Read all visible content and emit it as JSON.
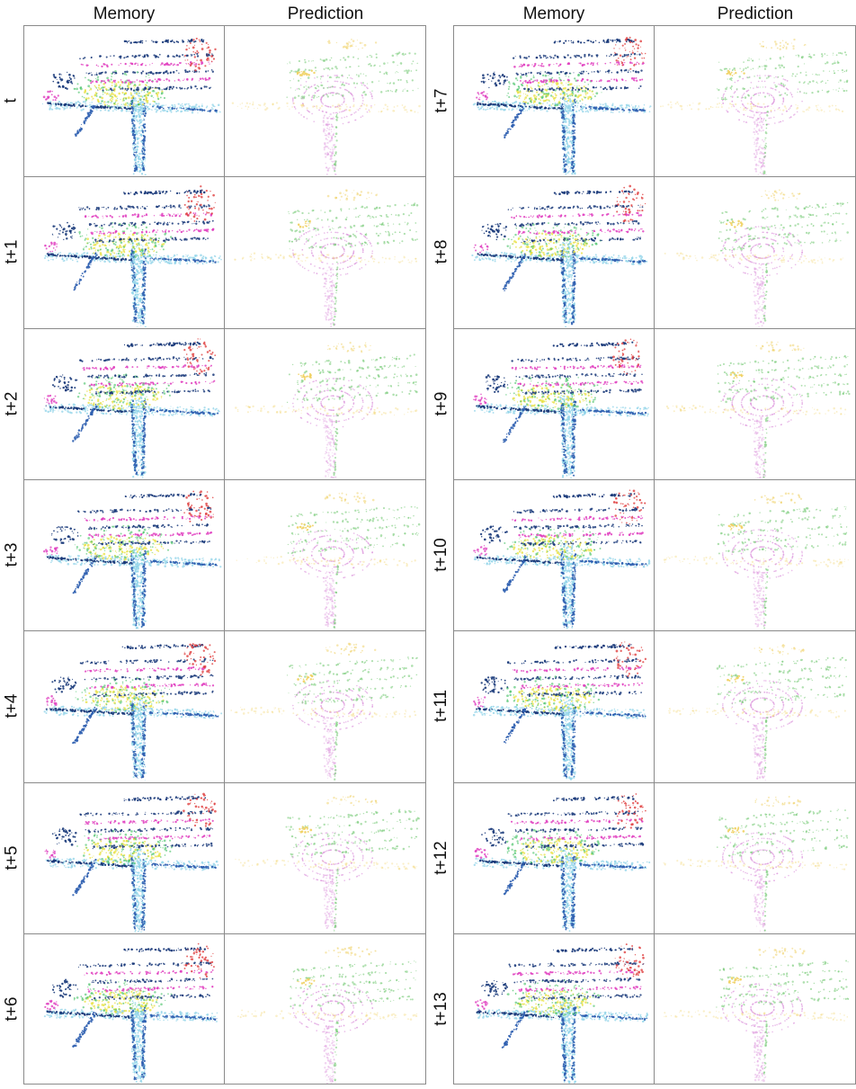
{
  "headers": {
    "left_memory": "Memory",
    "left_prediction": "Prediction",
    "right_memory": "Memory",
    "right_prediction": "Prediction"
  },
  "left_rows": [
    "t",
    "t+1",
    "t+2",
    "t+3",
    "t+4",
    "t+5",
    "t+6"
  ],
  "right_rows": [
    "t+7",
    "t+8",
    "t+9",
    "t+10",
    "t+11",
    "t+12",
    "t+13"
  ],
  "colors": {
    "road": "#2f5fb0",
    "ground": "#8fd3e8",
    "vegetation_yellow": "#e8e040",
    "building_magenta": "#e040c0",
    "vehicle_red": "#e04040",
    "dark_structure": "#1a3a7a",
    "green_points": "#40c060",
    "pred_pink": "#e0a0e0",
    "pred_green": "#7acc7a",
    "pred_yellow": "#f0d060",
    "border": "#8a8a8a"
  }
}
